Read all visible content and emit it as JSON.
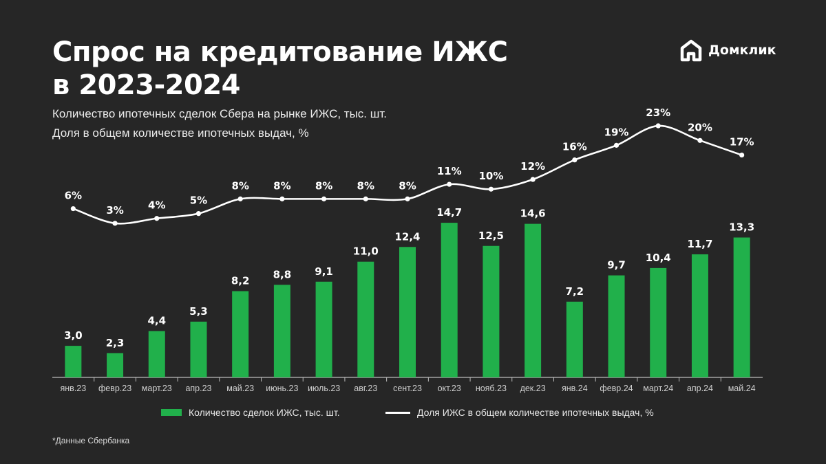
{
  "header": {
    "title_line1": "Спрос на кредитование ИЖС",
    "title_line2": "в 2023-2024",
    "subtitle_line1": "Количество ипотечных сделок Сбера на рынке ИЖС, тыс. шт.",
    "subtitle_line2": "Доля в общем количестве ипотечных выдач, %"
  },
  "logo": {
    "text": "Домклик",
    "icon": "house-logo-icon"
  },
  "colors": {
    "background": "#262626",
    "bar": "#21b04b",
    "line": "#ffffff",
    "text": "#ffffff"
  },
  "legend": {
    "bar_label": "Количество сделок ИЖС, тыс. шт.",
    "line_label": "Доля ИЖС в общем количестве ипотечных выдач, %"
  },
  "footnote": "*Данные Сбербанка",
  "chart_data": {
    "type": "bar",
    "categories": [
      "янв.23",
      "февр.23",
      "март.23",
      "апр.23",
      "май.23",
      "июнь.23",
      "июль.23",
      "авг.23",
      "сент.23",
      "окт.23",
      "нояб.23",
      "дек.23",
      "янв.24",
      "февр.24",
      "март.24",
      "апр.24",
      "май.24"
    ],
    "series": [
      {
        "name": "Количество сделок ИЖС, тыс. шт.",
        "type": "bar",
        "values": [
          3.0,
          2.3,
          4.4,
          5.3,
          8.2,
          8.8,
          9.1,
          11.0,
          12.4,
          14.7,
          12.5,
          14.6,
          7.2,
          9.7,
          10.4,
          11.7,
          13.3
        ],
        "labels": [
          "3,0",
          "2,3",
          "4,4",
          "5,3",
          "8,2",
          "8,8",
          "9,1",
          "11,0",
          "12,4",
          "14,7",
          "12,5",
          "14,6",
          "7,2",
          "9,7",
          "10,4",
          "11,7",
          "13,3"
        ]
      },
      {
        "name": "Доля ИЖС в общем количестве ипотечных выдач, %",
        "type": "line",
        "values": [
          6,
          3,
          4,
          5,
          8,
          8,
          8,
          8,
          8,
          11,
          10,
          12,
          16,
          19,
          23,
          20,
          17
        ],
        "labels": [
          "6%",
          "3%",
          "4%",
          "5%",
          "8%",
          "8%",
          "8%",
          "8%",
          "8%",
          "11%",
          "10%",
          "12%",
          "16%",
          "19%",
          "23%",
          "20%",
          "17%"
        ]
      }
    ],
    "legend_position": "bottom",
    "grid": false
  }
}
